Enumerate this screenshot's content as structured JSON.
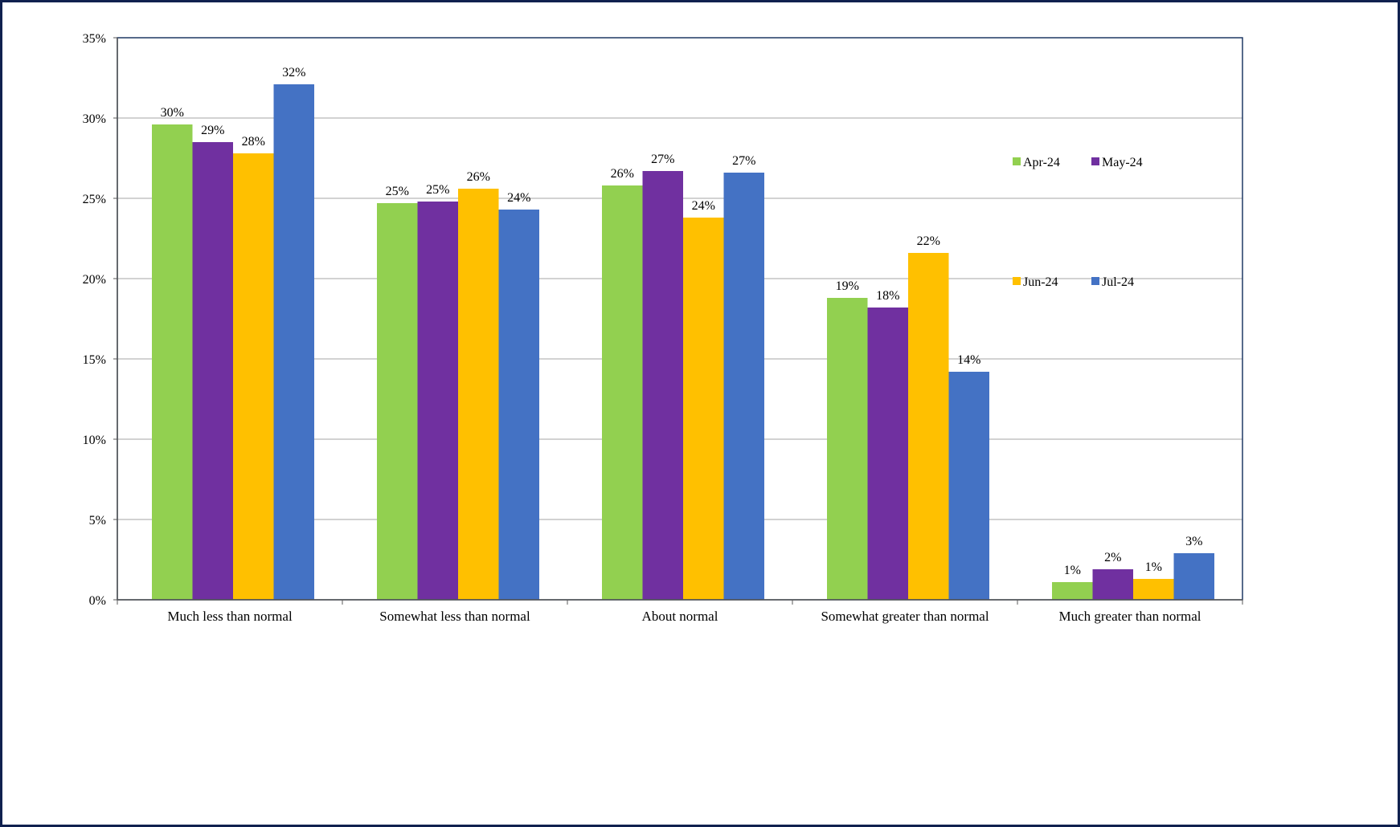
{
  "chart_data": {
    "type": "bar",
    "categories": [
      "Much less than normal",
      "Somewhat less than normal",
      "About normal",
      "Somewhat greater than normal",
      "Much greater than normal"
    ],
    "series": [
      {
        "name": "Apr-24",
        "color": "#92d050",
        "values": [
          29.6,
          24.7,
          25.8,
          18.8,
          1.1
        ],
        "labels": [
          "30%",
          "25%",
          "26%",
          "19%",
          "1%"
        ]
      },
      {
        "name": "May-24",
        "color": "#7030a0",
        "values": [
          28.5,
          24.8,
          26.7,
          18.2,
          1.9
        ],
        "labels": [
          "29%",
          "25%",
          "27%",
          "18%",
          "2%"
        ]
      },
      {
        "name": "Jun-24",
        "color": "#ffc000",
        "values": [
          27.8,
          25.6,
          23.8,
          21.6,
          1.3
        ],
        "labels": [
          "28%",
          "26%",
          "24%",
          "22%",
          "1%"
        ]
      },
      {
        "name": "Jul-24",
        "color": "#4472c4",
        "values": [
          32.1,
          24.3,
          26.6,
          14.2,
          2.9
        ],
        "labels": [
          "32%",
          "24%",
          "27%",
          "14%",
          "3%"
        ]
      }
    ],
    "yticks": [
      "0%",
      "5%",
      "10%",
      "15%",
      "20%",
      "25%",
      "30%",
      "35%"
    ],
    "ylim": [
      0,
      35
    ],
    "grid": true,
    "legend_position": "upper-right inside plot, 2x2",
    "title": "",
    "xlabel": "",
    "ylabel": ""
  }
}
